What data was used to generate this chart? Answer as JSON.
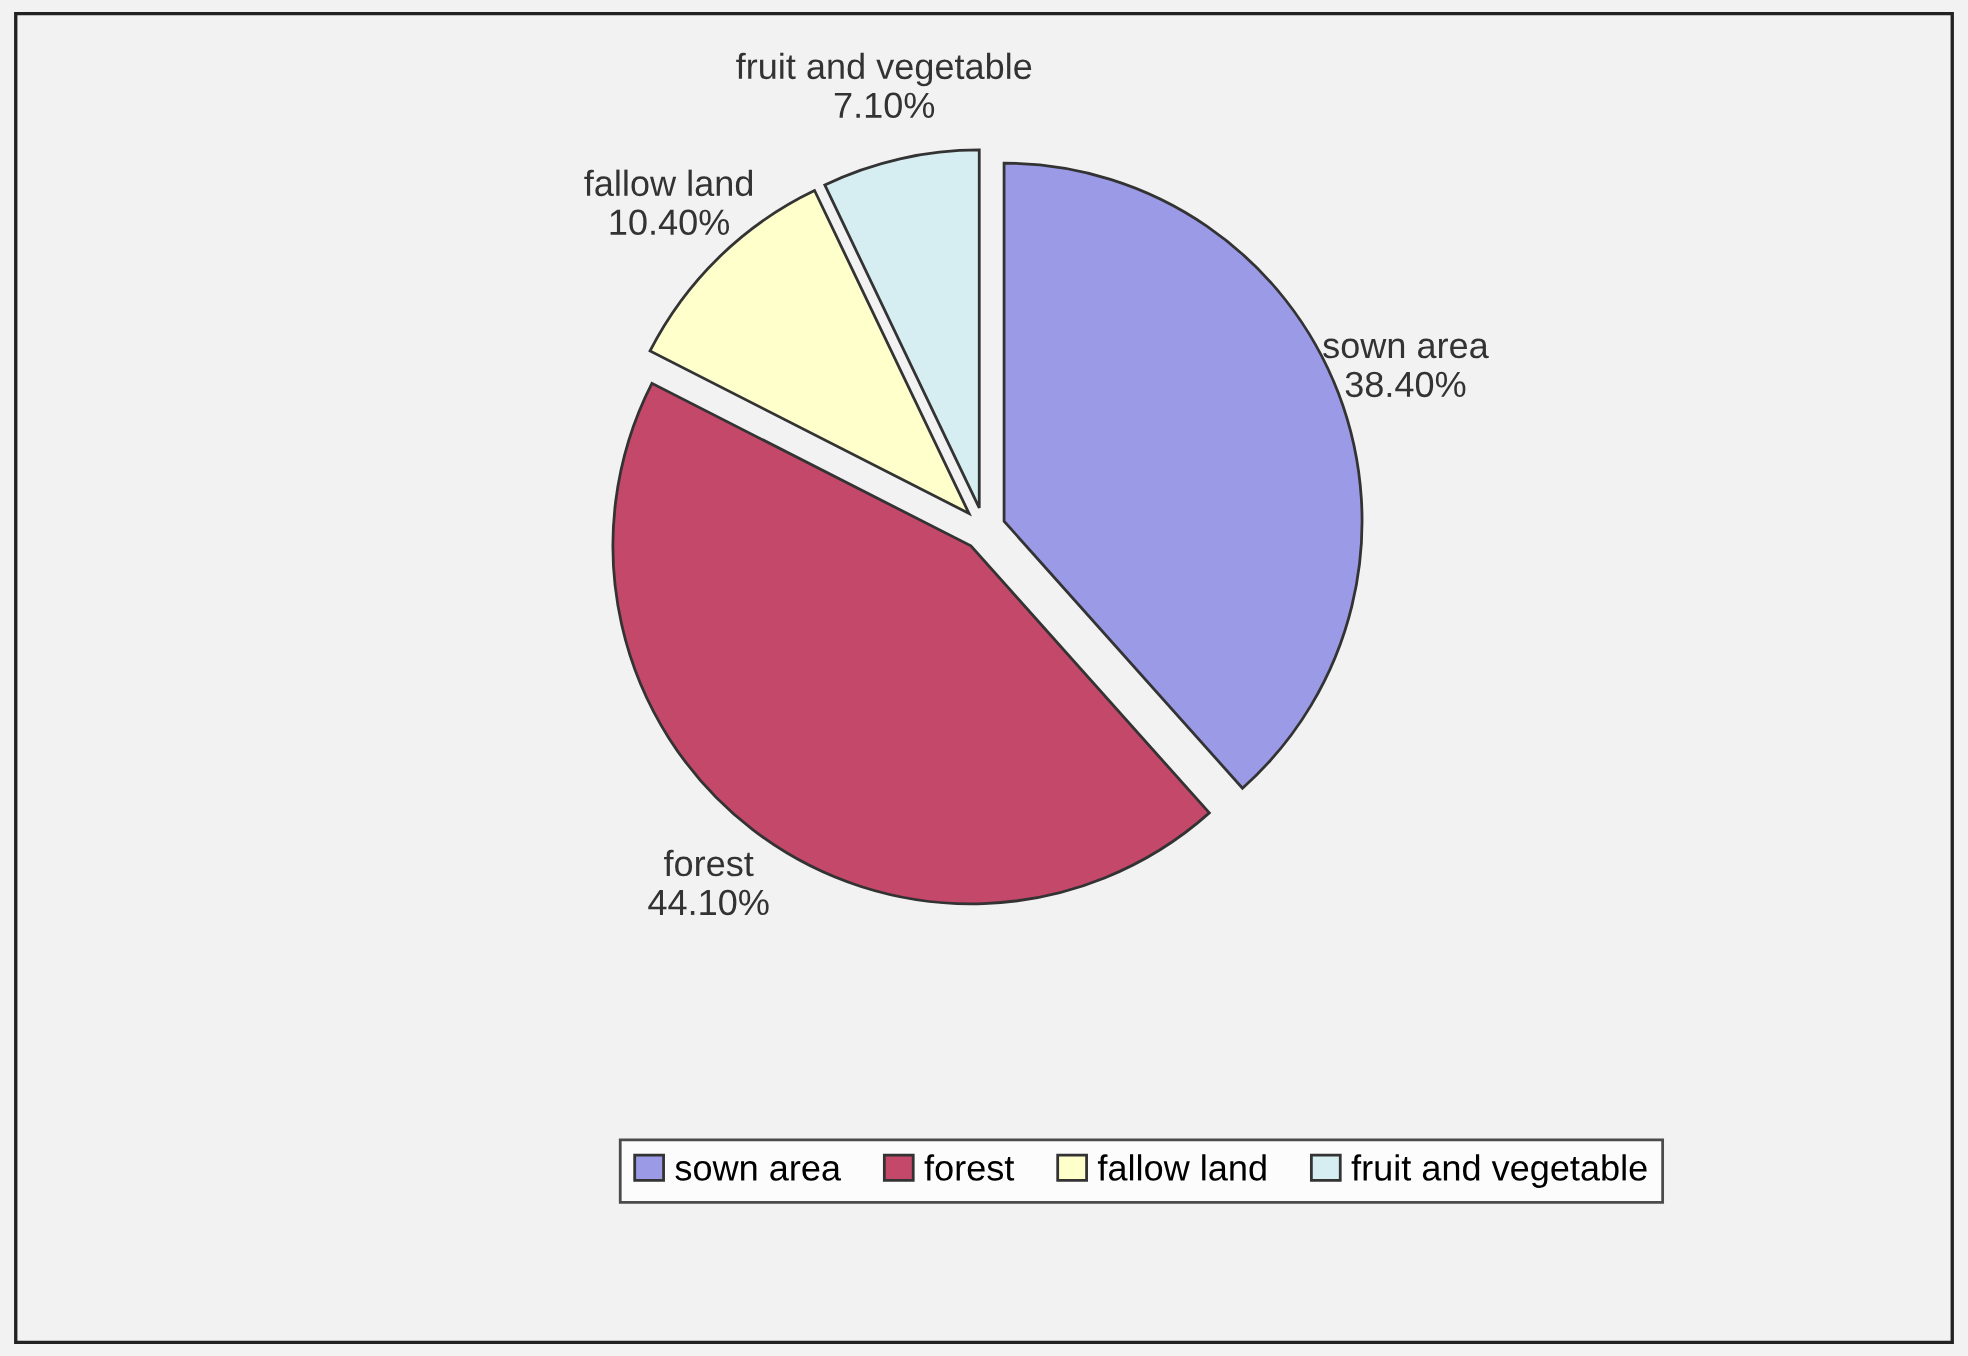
{
  "chart_data": {
    "type": "pie",
    "categories": [
      "sown area",
      "forest",
      "fallow land",
      "fruit and vegetable"
    ],
    "values": [
      38.4,
      44.1,
      10.4,
      7.1
    ],
    "value_labels": [
      "38.40%",
      "44.10%",
      "10.40%",
      "7.10%"
    ],
    "colors": [
      "#9a9ae6",
      "#c4486a",
      "#ffffcc",
      "#d6eef2"
    ],
    "legend": "bottom"
  }
}
